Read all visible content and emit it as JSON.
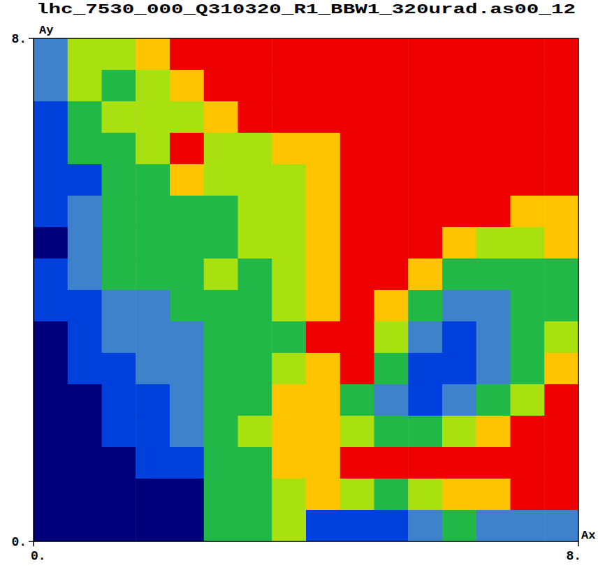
{
  "chart_data": {
    "type": "heatmap",
    "title": "lhc_7530_000_Q310320_R1_BBW1_320urad.as00_12",
    "x_label": "Ax",
    "y_label": "Ay",
    "xlim": [
      0,
      8
    ],
    "ylim": [
      0,
      8
    ],
    "xticks": [
      {
        "value": 0,
        "label": "0."
      },
      {
        "value": 8,
        "label": "8."
      }
    ],
    "yticks": [
      {
        "value": 0,
        "label": "0."
      },
      {
        "value": 8,
        "label": "8."
      }
    ],
    "x": [
      0.25,
      0.75,
      1.25,
      1.75,
      2.25,
      2.75,
      3.25,
      3.75,
      4.25,
      4.75,
      5.25,
      5.75,
      6.25,
      6.75,
      7.25,
      7.75
    ],
    "y": [
      7.75,
      7.25,
      6.75,
      6.25,
      5.75,
      5.25,
      4.75,
      4.25,
      3.75,
      3.25,
      2.75,
      2.25,
      1.75,
      1.25,
      0.75,
      0.25
    ],
    "z": [
      [
        2,
        4,
        4,
        5,
        6,
        6,
        6,
        6,
        6,
        6,
        6,
        6,
        6,
        6,
        6,
        6
      ],
      [
        2,
        4,
        3,
        4,
        5,
        6,
        6,
        6,
        6,
        6,
        6,
        6,
        6,
        6,
        6,
        6
      ],
      [
        1,
        3,
        4,
        4,
        4,
        5,
        6,
        6,
        6,
        6,
        6,
        6,
        6,
        6,
        6,
        6
      ],
      [
        1,
        3,
        3,
        4,
        6,
        4,
        4,
        5,
        5,
        6,
        6,
        6,
        6,
        6,
        6,
        6
      ],
      [
        1,
        1,
        3,
        3,
        5,
        4,
        4,
        4,
        5,
        6,
        6,
        6,
        6,
        6,
        6,
        6
      ],
      [
        1,
        2,
        3,
        3,
        3,
        3,
        4,
        4,
        5,
        6,
        6,
        6,
        6,
        6,
        5,
        5
      ],
      [
        0,
        2,
        3,
        3,
        3,
        3,
        4,
        4,
        5,
        6,
        6,
        6,
        5,
        4,
        4,
        5
      ],
      [
        1,
        2,
        3,
        3,
        3,
        4,
        3,
        4,
        5,
        6,
        6,
        5,
        3,
        3,
        3,
        3
      ],
      [
        1,
        1,
        2,
        2,
        3,
        3,
        3,
        4,
        5,
        6,
        5,
        3,
        2,
        2,
        3,
        3
      ],
      [
        0,
        1,
        2,
        2,
        2,
        3,
        3,
        3,
        6,
        6,
        4,
        2,
        1,
        2,
        3,
        4
      ],
      [
        0,
        1,
        1,
        2,
        2,
        3,
        3,
        4,
        5,
        6,
        3,
        1,
        1,
        2,
        3,
        5
      ],
      [
        0,
        0,
        1,
        1,
        2,
        3,
        3,
        5,
        5,
        3,
        2,
        1,
        2,
        3,
        4,
        6
      ],
      [
        0,
        0,
        1,
        1,
        2,
        3,
        4,
        5,
        5,
        4,
        3,
        3,
        4,
        5,
        6,
        6
      ],
      [
        0,
        0,
        0,
        1,
        1,
        3,
        3,
        5,
        5,
        6,
        6,
        6,
        6,
        6,
        6,
        6
      ],
      [
        0,
        0,
        0,
        0,
        0,
        3,
        3,
        4,
        5,
        4,
        3,
        4,
        5,
        5,
        6,
        6
      ],
      [
        0,
        0,
        0,
        0,
        0,
        3,
        3,
        4,
        1,
        1,
        1,
        2,
        3,
        2,
        2,
        2
      ]
    ],
    "zlim": [
      0,
      6
    ],
    "colors": [
      "#00007a",
      "#0040dd",
      "#3f82cc",
      "#22b848",
      "#a8e010",
      "#ffc400",
      "#ee0000"
    ],
    "tick_labels": true,
    "grid": false
  }
}
